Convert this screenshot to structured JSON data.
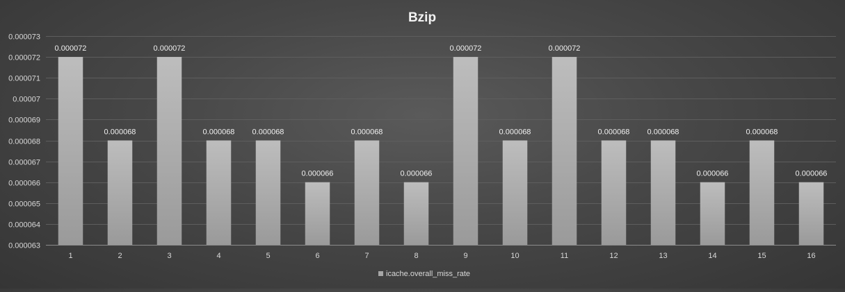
{
  "chart_data": {
    "type": "bar",
    "title": "Bzip",
    "xlabel": "",
    "ylabel": "",
    "categories": [
      "1",
      "2",
      "3",
      "4",
      "5",
      "6",
      "7",
      "8",
      "9",
      "10",
      "11",
      "12",
      "13",
      "14",
      "15",
      "16"
    ],
    "series": [
      {
        "name": "icache.overall_miss_rate",
        "values": [
          7.2e-05,
          6.8e-05,
          7.2e-05,
          6.8e-05,
          6.8e-05,
          6.6e-05,
          6.8e-05,
          6.6e-05,
          7.2e-05,
          6.8e-05,
          7.2e-05,
          6.8e-05,
          6.8e-05,
          6.6e-05,
          6.8e-05,
          6.6e-05
        ],
        "labels": [
          "0.000072",
          "0.000068",
          "0.000072",
          "0.000068",
          "0.000068",
          "0.000066",
          "0.000068",
          "0.000066",
          "0.000072",
          "0.000068",
          "0.000072",
          "0.000068",
          "0.000068",
          "0.000066",
          "0.000068",
          "0.000066"
        ],
        "color": "#a6a6a6"
      }
    ],
    "ylim": [
      6.3e-05,
      7.3e-05
    ],
    "yticks": [
      6.3e-05,
      6.4e-05,
      6.5e-05,
      6.6e-05,
      6.7e-05,
      6.8e-05,
      6.9e-05,
      7e-05,
      7.1e-05,
      7.2e-05,
      7.3e-05
    ],
    "ytick_labels": [
      "0.000063",
      "0.000064",
      "0.000065",
      "0.000066",
      "0.000067",
      "0.000068",
      "0.000069",
      "0.00007",
      "0.000071",
      "0.000072",
      "0.000073"
    ],
    "grid": true,
    "legend_position": "bottom",
    "legend_swatch_color": "#a6a6a6"
  }
}
